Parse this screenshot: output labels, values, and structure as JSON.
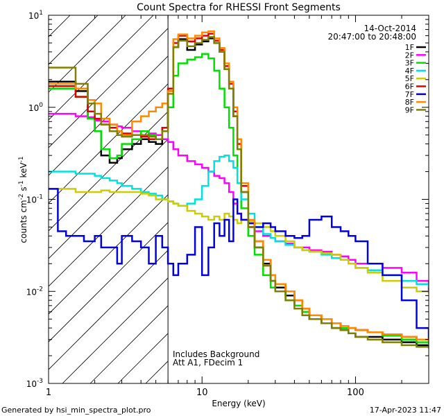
{
  "chart_data": {
    "type": "line",
    "title": "Count Spectra for RHESSI Front Segments",
    "xlabel": "Energy (keV)",
    "ylabel_parts": {
      "base": "counts cm",
      "e1": "-2",
      "s": " s",
      "e2": "-1",
      "kev": " keV",
      "e3": "-1"
    },
    "x_scale": "log",
    "y_scale": "log",
    "xlim": [
      1,
      300
    ],
    "ylim": [
      0.001,
      10
    ],
    "x_ticks": [
      {
        "v": 1,
        "label": "1"
      },
      {
        "v": 10,
        "label": "10"
      },
      {
        "v": 100,
        "label": "100"
      }
    ],
    "y_ticks": [
      {
        "v": 0.001,
        "base": "10",
        "exp": "-3"
      },
      {
        "v": 0.01,
        "base": "10",
        "exp": "-2"
      },
      {
        "v": 0.1,
        "base": "10",
        "exp": "-1"
      },
      {
        "v": 1,
        "base": "10",
        "exp": "0"
      },
      {
        "v": 10,
        "base": "10",
        "exp": "1"
      }
    ],
    "date": "14-Oct-2014",
    "time_range": "20:47:00 to 20:48:00",
    "annotation_lines": [
      "Includes Background",
      "Att A1, FDecim 1"
    ],
    "hatched_below_keV": 6,
    "series": [
      {
        "name": "1F",
        "color": "#000000",
        "x": [
          1,
          1.5,
          1.8,
          2,
          2.2,
          2.5,
          2.8,
          3,
          3.5,
          4,
          4.5,
          5,
          5.5,
          6,
          6.5,
          7,
          8,
          9,
          10,
          11,
          12,
          13,
          14,
          15,
          16,
          17,
          18,
          20,
          22,
          25,
          28,
          30,
          35,
          40,
          45,
          50,
          60,
          70,
          80,
          90,
          100,
          120,
          150,
          200,
          250,
          300
        ],
        "y": [
          1.9,
          1.5,
          0.75,
          0.55,
          0.3,
          0.25,
          0.28,
          0.35,
          0.4,
          0.45,
          0.42,
          0.4,
          0.6,
          1.5,
          4.5,
          5.5,
          4.2,
          4.8,
          5.2,
          5.6,
          5,
          4,
          2.6,
          1.6,
          0.8,
          0.35,
          0.12,
          0.05,
          0.03,
          0.02,
          0.013,
          0.011,
          0.009,
          0.007,
          0.006,
          0.005,
          0.0045,
          0.004,
          0.0038,
          0.0035,
          0.0032,
          0.0032,
          0.003,
          0.0028,
          0.0026,
          0.0025
        ]
      },
      {
        "name": "2F",
        "color": "#ff00ff",
        "x": [
          1,
          1.5,
          1.8,
          2,
          2.2,
          2.5,
          2.8,
          3,
          3.5,
          4,
          4.5,
          5,
          5.5,
          6,
          6.5,
          7,
          8,
          9,
          10,
          11,
          12,
          13,
          14,
          15,
          16,
          17,
          18,
          20,
          22,
          25,
          28,
          30,
          35,
          40,
          45,
          50,
          60,
          70,
          80,
          90,
          100,
          120,
          150,
          200,
          250,
          300
        ],
        "y": [
          0.85,
          0.8,
          0.78,
          0.72,
          0.7,
          0.65,
          0.62,
          0.6,
          0.55,
          0.5,
          0.52,
          0.5,
          0.45,
          0.42,
          0.35,
          0.3,
          0.26,
          0.24,
          0.22,
          0.2,
          0.18,
          0.17,
          0.15,
          0.12,
          0.09,
          0.07,
          0.06,
          0.05,
          0.045,
          0.04,
          0.038,
          0.035,
          0.033,
          0.03,
          0.03,
          0.028,
          0.027,
          0.025,
          0.024,
          0.022,
          0.02,
          0.02,
          0.018,
          0.016,
          0.013,
          0.01
        ]
      },
      {
        "name": "3F",
        "color": "#00e000",
        "x": [
          1,
          1.5,
          1.8,
          2,
          2.2,
          2.5,
          2.8,
          3,
          3.5,
          4,
          4.5,
          5,
          5.5,
          6,
          6.5,
          7,
          8,
          9,
          10,
          11,
          12,
          13,
          14,
          15,
          16,
          17,
          18,
          20,
          22,
          25,
          28,
          30,
          35,
          40,
          45,
          50,
          60,
          70,
          80,
          90,
          100,
          120,
          150,
          200,
          250,
          300
        ],
        "y": [
          1.6,
          1.3,
          0.75,
          0.55,
          0.35,
          0.28,
          0.3,
          0.4,
          0.45,
          0.55,
          0.5,
          0.45,
          0.6,
          1,
          2.2,
          3,
          3.3,
          3.5,
          3.8,
          3.4,
          2.5,
          1.6,
          1,
          0.6,
          0.3,
          0.15,
          0.08,
          0.04,
          0.025,
          0.015,
          0.011,
          0.01,
          0.008,
          0.007,
          0.006,
          0.0055,
          0.005,
          0.0045,
          0.004,
          0.004,
          0.0038,
          0.0036,
          0.0033,
          0.003,
          0.0028,
          0.0026
        ]
      },
      {
        "name": "4F",
        "color": "#00e0e0",
        "x": [
          1,
          1.5,
          1.8,
          2,
          2.2,
          2.5,
          2.8,
          3,
          3.5,
          4,
          4.5,
          5,
          5.5,
          6,
          6.5,
          7,
          8,
          9,
          10,
          11,
          12,
          13,
          14,
          15,
          16,
          17,
          18,
          20,
          22,
          25,
          28,
          30,
          35,
          40,
          45,
          50,
          60,
          70,
          80,
          90,
          100,
          120,
          150,
          200,
          250,
          300
        ],
        "y": [
          0.2,
          0.19,
          0.19,
          0.18,
          0.17,
          0.16,
          0.15,
          0.14,
          0.13,
          0.12,
          0.115,
          0.11,
          0.1,
          0.095,
          0.09,
          0.085,
          0.09,
          0.1,
          0.14,
          0.2,
          0.26,
          0.29,
          0.3,
          0.26,
          0.22,
          0.15,
          0.1,
          0.07,
          0.05,
          0.042,
          0.038,
          0.035,
          0.032,
          0.03,
          0.028,
          0.027,
          0.025,
          0.023,
          0.022,
          0.02,
          0.018,
          0.017,
          0.015,
          0.013,
          0.012,
          0.011
        ]
      },
      {
        "name": "5F",
        "color": "#cccc00",
        "x": [
          1,
          1.5,
          1.8,
          2,
          2.2,
          2.5,
          2.8,
          3,
          3.5,
          4,
          4.5,
          5,
          5.5,
          6,
          6.5,
          7,
          8,
          9,
          10,
          11,
          12,
          13,
          14,
          15,
          16,
          17,
          18,
          20,
          22,
          25,
          28,
          30,
          35,
          40,
          45,
          50,
          60,
          70,
          80,
          90,
          100,
          120,
          150,
          200,
          250,
          300
        ],
        "y": [
          0.13,
          0.12,
          0.12,
          0.12,
          0.125,
          0.12,
          0.12,
          0.12,
          0.12,
          0.115,
          0.11,
          0.1,
          0.1,
          0.095,
          0.09,
          0.085,
          0.075,
          0.07,
          0.065,
          0.06,
          0.065,
          0.06,
          0.07,
          0.065,
          0.06,
          0.055,
          0.06,
          0.058,
          0.055,
          0.05,
          0.045,
          0.04,
          0.035,
          0.03,
          0.028,
          0.027,
          0.026,
          0.025,
          0.022,
          0.02,
          0.018,
          0.016,
          0.013,
          0.011,
          0.01,
          0.0095
        ]
      },
      {
        "name": "6F",
        "color": "#e00000",
        "x": [
          1,
          1.5,
          1.8,
          2,
          2.2,
          2.5,
          2.8,
          3,
          3.5,
          4,
          4.5,
          5,
          5.5,
          6,
          6.5,
          7,
          8,
          9,
          10,
          11,
          12,
          13,
          14,
          15,
          16,
          17,
          18,
          20,
          22,
          25,
          28,
          30,
          35,
          40,
          45,
          50,
          60,
          70,
          80,
          90,
          100,
          120,
          150,
          200,
          250,
          300
        ],
        "y": [
          1.7,
          1.3,
          0.9,
          0.75,
          0.65,
          0.6,
          0.55,
          0.52,
          0.5,
          0.48,
          0.45,
          0.45,
          0.6,
          1.6,
          5,
          6,
          5.2,
          5.6,
          6,
          6.3,
          5.3,
          4.2,
          2.8,
          1.8,
          0.9,
          0.4,
          0.14,
          0.055,
          0.035,
          0.022,
          0.015,
          0.012,
          0.01,
          0.008,
          0.0065,
          0.0055,
          0.005,
          0.0045,
          0.0042,
          0.004,
          0.0038,
          0.0036,
          0.0034,
          0.0032,
          0.003,
          0.0028
        ]
      },
      {
        "name": "7F",
        "color": "#0000e0",
        "x": [
          1,
          1.15,
          1.3,
          1.5,
          1.7,
          2,
          2.2,
          2.5,
          2.8,
          3,
          3.5,
          4,
          4.5,
          5,
          5.5,
          6,
          6.5,
          7,
          8,
          9,
          10,
          11,
          12,
          13,
          14,
          15,
          16,
          17,
          18,
          20,
          22,
          25,
          28,
          30,
          35,
          40,
          45,
          50,
          60,
          70,
          80,
          90,
          100,
          120,
          150,
          200,
          250,
          300
        ],
        "y": [
          0.13,
          0.045,
          0.04,
          0.04,
          0.035,
          0.04,
          0.03,
          0.03,
          0.02,
          0.04,
          0.035,
          0.03,
          0.02,
          0.04,
          0.03,
          0.02,
          0.015,
          0.02,
          0.025,
          0.05,
          0.015,
          0.03,
          0.055,
          0.04,
          0.06,
          0.035,
          0.1,
          0.07,
          0.06,
          0.055,
          0.05,
          0.055,
          0.05,
          0.045,
          0.04,
          0.038,
          0.04,
          0.06,
          0.065,
          0.05,
          0.045,
          0.04,
          0.035,
          0.02,
          0.015,
          0.008,
          0.004,
          0.003
        ]
      },
      {
        "name": "8F",
        "color": "#ff8800",
        "x": [
          1,
          1.5,
          1.8,
          2,
          2.2,
          2.5,
          2.8,
          3,
          3.5,
          4,
          4.5,
          5,
          5.5,
          6,
          6.5,
          7,
          8,
          9,
          10,
          11,
          12,
          13,
          14,
          15,
          16,
          17,
          18,
          20,
          22,
          25,
          28,
          30,
          35,
          40,
          45,
          50,
          60,
          70,
          80,
          90,
          100,
          120,
          150,
          200,
          250,
          300
        ],
        "y": [
          1.8,
          1.6,
          1.2,
          1.1,
          0.75,
          0.65,
          0.55,
          0.5,
          0.7,
          0.8,
          0.9,
          1,
          1.1,
          1.5,
          5.5,
          6.2,
          5.6,
          6,
          6.5,
          6.7,
          5.6,
          4.4,
          3,
          1.9,
          1,
          0.45,
          0.15,
          0.06,
          0.035,
          0.022,
          0.015,
          0.012,
          0.01,
          0.008,
          0.0065,
          0.0055,
          0.005,
          0.0045,
          0.0042,
          0.004,
          0.0038,
          0.0036,
          0.0034,
          0.0032,
          0.003,
          0.0028
        ]
      },
      {
        "name": "9F",
        "color": "#808000",
        "x": [
          1,
          1.5,
          1.8,
          2,
          2.2,
          2.5,
          2.8,
          3,
          3.5,
          4,
          4.5,
          5,
          5.5,
          6,
          6.5,
          7,
          8,
          9,
          10,
          11,
          12,
          13,
          14,
          15,
          16,
          17,
          18,
          20,
          22,
          25,
          28,
          30,
          35,
          40,
          45,
          50,
          60,
          70,
          80,
          90,
          100,
          120,
          150,
          200,
          250,
          300
        ],
        "y": [
          2.7,
          1.8,
          1.1,
          0.85,
          0.65,
          0.55,
          0.5,
          0.48,
          0.5,
          0.5,
          0.48,
          0.45,
          0.55,
          1.4,
          4.5,
          5.3,
          4.6,
          5,
          5.4,
          5.8,
          5,
          4,
          2.6,
          1.6,
          0.8,
          0.35,
          0.12,
          0.05,
          0.03,
          0.019,
          0.013,
          0.01,
          0.008,
          0.0065,
          0.0055,
          0.005,
          0.0045,
          0.004,
          0.0038,
          0.0035,
          0.0032,
          0.003,
          0.0028,
          0.0026,
          0.0025,
          0.0024
        ]
      }
    ]
  },
  "footer": {
    "generator": "Generated by hsi_min_spectra_plot.pro",
    "timestamp": "17-Apr-2023 11:47"
  }
}
